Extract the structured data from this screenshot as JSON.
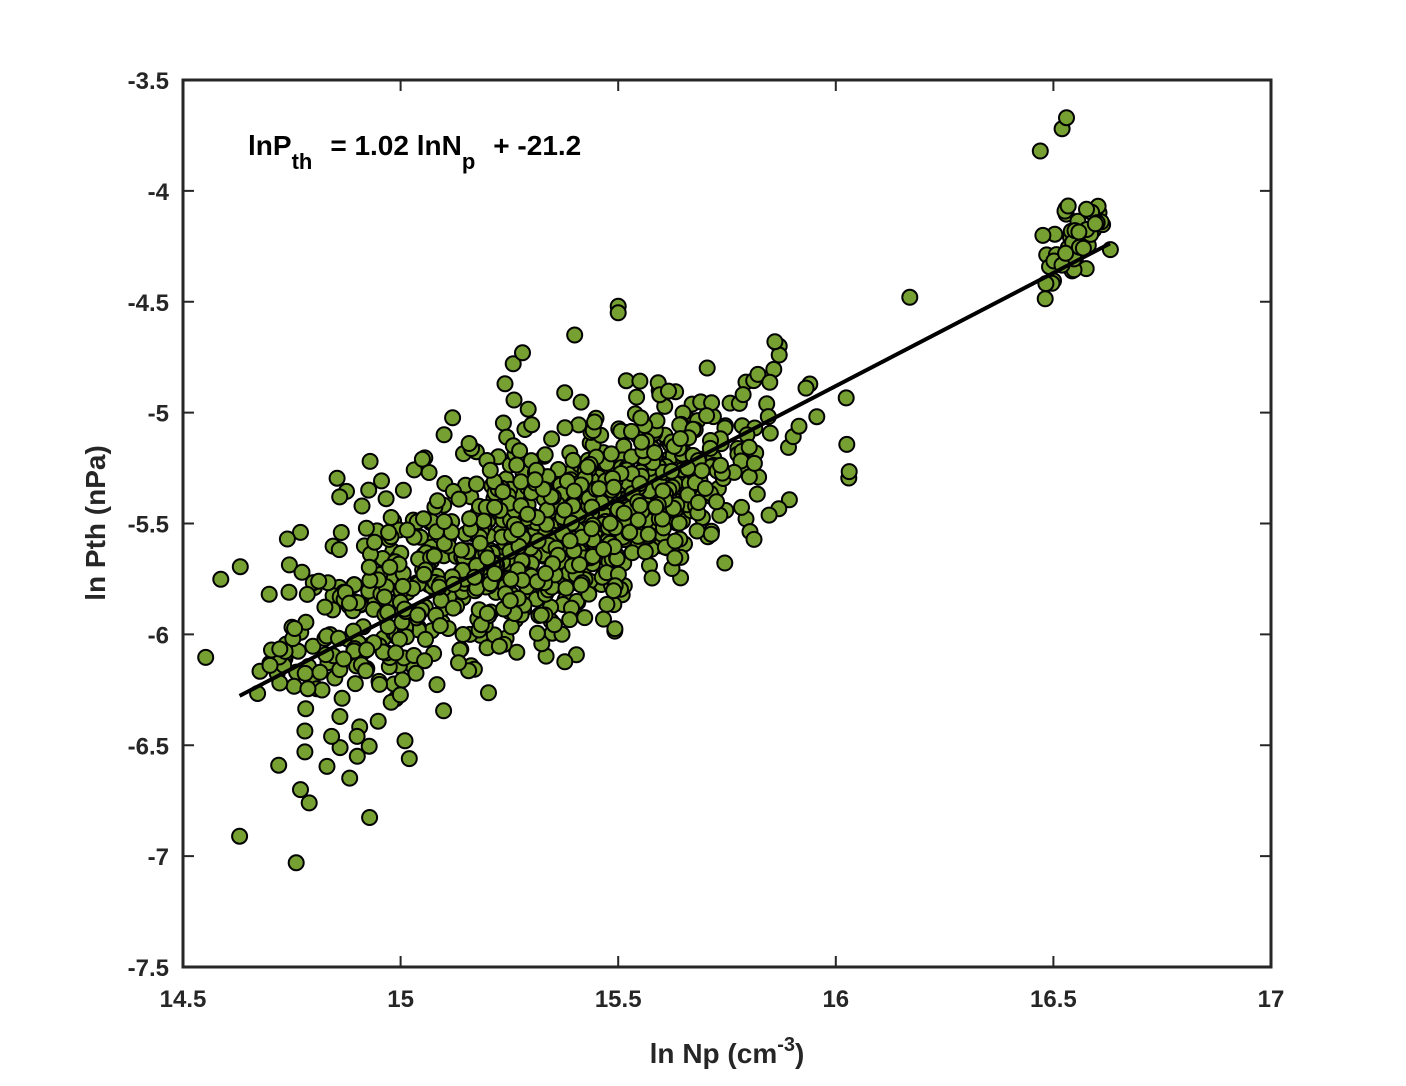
{
  "chart_data": {
    "type": "scatter",
    "xlabel": {
      "text": "ln Np (cm",
      "sup": "-3",
      "suffix": ")"
    },
    "ylabel": "ln Pth (nPa)",
    "xlim": [
      14.5,
      17
    ],
    "ylim": [
      -7.5,
      -3.5
    ],
    "xticks": [
      "14.5",
      "15",
      "15.5",
      "16",
      "16.5",
      "17"
    ],
    "yticks": [
      "-3.5",
      "-4",
      "-4.5",
      "-5",
      "-5.5",
      "-6",
      "-6.5",
      "-7",
      "-7.5"
    ],
    "grid": false,
    "colors": {
      "marker_fill": "#77A032",
      "marker_edge": "#000000",
      "fit_line": "#000000",
      "axes": "#262626"
    },
    "annotation": {
      "lhs": "lnP",
      "lhs_sub": "th",
      "mid": "=  1.02  lnN",
      "mid_sub": "p",
      "rhs": "+ -21.2"
    },
    "fit": {
      "slope": 1.02,
      "intercept": -21.2,
      "x_range": [
        14.63,
        16.63
      ]
    },
    "outliers": [
      [
        14.63,
        -6.91
      ],
      [
        14.76,
        -7.03
      ],
      [
        14.79,
        -6.76
      ],
      [
        14.77,
        -6.7
      ],
      [
        14.72,
        -6.59
      ],
      [
        14.78,
        -6.53
      ],
      [
        15.01,
        -6.48
      ],
      [
        15.02,
        -6.56
      ],
      [
        14.9,
        -6.46
      ],
      [
        16.17,
        -4.48
      ],
      [
        16.47,
        -3.82
      ],
      [
        16.52,
        -3.72
      ],
      [
        16.53,
        -3.67
      ],
      [
        15.87,
        -4.7
      ],
      [
        15.87,
        -4.74
      ],
      [
        15.86,
        -4.68
      ],
      [
        15.28,
        -4.73
      ],
      [
        15.4,
        -4.65
      ],
      [
        15.5,
        -4.52
      ],
      [
        15.5,
        -4.55
      ],
      [
        15.24,
        -4.87
      ],
      [
        14.93,
        -5.22
      ],
      [
        14.86,
        -5.38
      ],
      [
        14.7,
        -6.14
      ],
      [
        14.77,
        -5.54
      ],
      [
        14.74,
        -5.57
      ],
      [
        15.05,
        -5.21
      ],
      [
        15.1,
        -5.1
      ]
    ],
    "clusters": [
      {
        "cx": 15.5,
        "cy": -5.45,
        "sx": 0.17,
        "sy": 0.2,
        "n": 600
      },
      {
        "cx": 15.25,
        "cy": -5.55,
        "sx": 0.18,
        "sy": 0.25,
        "n": 280
      },
      {
        "cx": 14.95,
        "cy": -5.9,
        "sx": 0.14,
        "sy": 0.28,
        "n": 220
      },
      {
        "cx": 16.55,
        "cy": -4.25,
        "sx": 0.045,
        "sy": 0.09,
        "n": 55
      }
    ],
    "seed": 7
  }
}
